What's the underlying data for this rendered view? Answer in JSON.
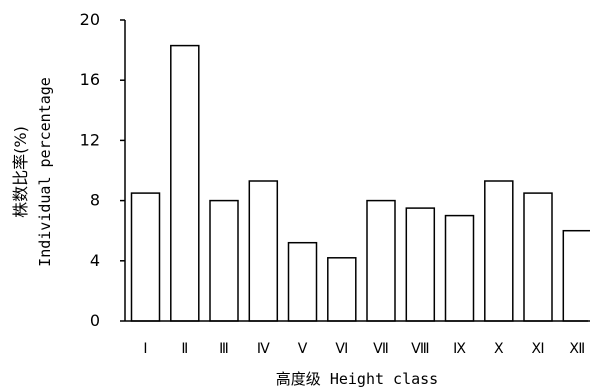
{
  "chart_data": {
    "type": "bar",
    "categories": [
      "Ⅰ",
      "Ⅱ",
      "Ⅲ",
      "Ⅳ",
      "Ⅴ",
      "Ⅵ",
      "Ⅶ",
      "Ⅷ",
      "Ⅸ",
      "Ⅹ",
      "Ⅺ",
      "Ⅻ"
    ],
    "values": [
      8.5,
      18.3,
      8.0,
      9.3,
      5.2,
      4.2,
      8.0,
      7.5,
      7.0,
      9.3,
      8.5,
      6.0
    ],
    "title": "",
    "xlabel": "高度级 Height class",
    "ylabel_cn": "株数比率(%)",
    "ylabel_en": "Individual percentage",
    "ylim": [
      0,
      20
    ],
    "yticks": [
      0,
      4,
      8,
      12,
      16,
      20
    ],
    "ytick_labels": [
      "0",
      "4",
      "8",
      "12",
      "16",
      "20"
    ],
    "grid": false,
    "bar_fill": "#ffffff",
    "bar_stroke": "#000000"
  }
}
